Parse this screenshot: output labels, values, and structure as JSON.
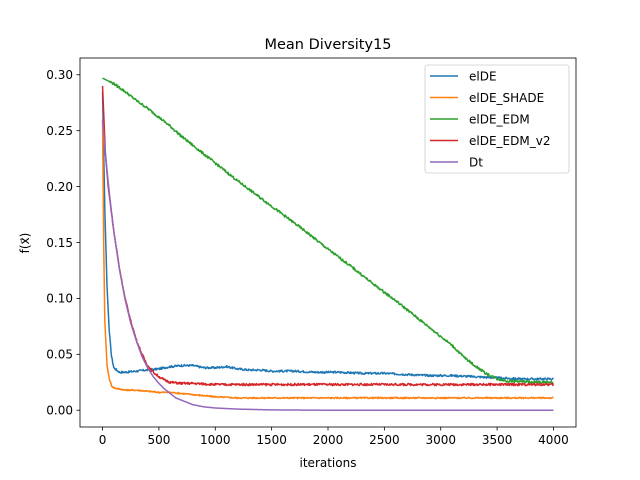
{
  "chart_data": {
    "type": "line",
    "title": "Mean Diversity15",
    "xlabel": "iterations",
    "ylabel": "f(x⃗)",
    "xlim": [
      -200,
      4200
    ],
    "ylim": [
      -0.015,
      0.315
    ],
    "xticks": [
      0,
      500,
      1000,
      1500,
      2000,
      2500,
      3000,
      3500,
      4000
    ],
    "yticks": [
      0.0,
      0.05,
      0.1,
      0.15,
      0.2,
      0.25,
      0.3
    ],
    "xtick_labels": [
      "0",
      "500",
      "1000",
      "1500",
      "2000",
      "2500",
      "3000",
      "3500",
      "4000"
    ],
    "ytick_labels": [
      "0.00",
      "0.05",
      "0.10",
      "0.15",
      "0.20",
      "0.25",
      "0.30"
    ],
    "grid": false,
    "legend_position": "top-right",
    "series": [
      {
        "name": "elDE",
        "color": "#1f77b4",
        "x": [
          0,
          20,
          40,
          60,
          80,
          100,
          150,
          200,
          300,
          400,
          500,
          600,
          700,
          800,
          900,
          1000,
          1100,
          1200,
          1300,
          1400,
          1500,
          1700,
          1900,
          2100,
          2300,
          2500,
          2700,
          2900,
          3100,
          3300,
          3500,
          3700,
          3900,
          4000
        ],
        "y": [
          0.285,
          0.18,
          0.11,
          0.07,
          0.048,
          0.038,
          0.034,
          0.034,
          0.035,
          0.036,
          0.037,
          0.039,
          0.04,
          0.04,
          0.038,
          0.038,
          0.039,
          0.037,
          0.036,
          0.036,
          0.035,
          0.035,
          0.034,
          0.034,
          0.033,
          0.033,
          0.032,
          0.031,
          0.031,
          0.03,
          0.029,
          0.028,
          0.028,
          0.028
        ]
      },
      {
        "name": "elDE_SHADE",
        "color": "#ff7f0e",
        "x": [
          0,
          10,
          20,
          40,
          60,
          80,
          100,
          150,
          200,
          300,
          400,
          500,
          600,
          700,
          800,
          900,
          1000,
          1200,
          1500,
          2000,
          2500,
          3000,
          3500,
          4000
        ],
        "y": [
          0.26,
          0.15,
          0.08,
          0.04,
          0.028,
          0.022,
          0.02,
          0.019,
          0.018,
          0.018,
          0.017,
          0.016,
          0.016,
          0.015,
          0.014,
          0.013,
          0.012,
          0.011,
          0.011,
          0.011,
          0.011,
          0.011,
          0.011,
          0.011
        ]
      },
      {
        "name": "elDE_EDM",
        "color": "#2ca02c",
        "x": [
          0,
          100,
          200,
          300,
          400,
          500,
          600,
          700,
          800,
          900,
          1000,
          1200,
          1400,
          1600,
          1800,
          2000,
          2200,
          2400,
          2600,
          2800,
          3000,
          3100,
          3200,
          3300,
          3400,
          3500,
          3600,
          3700,
          3800,
          3900,
          4000
        ],
        "y": [
          0.297,
          0.292,
          0.285,
          0.277,
          0.27,
          0.262,
          0.254,
          0.245,
          0.237,
          0.229,
          0.221,
          0.205,
          0.19,
          0.175,
          0.16,
          0.144,
          0.129,
          0.113,
          0.098,
          0.082,
          0.066,
          0.058,
          0.048,
          0.04,
          0.033,
          0.028,
          0.026,
          0.026,
          0.025,
          0.025,
          0.025
        ]
      },
      {
        "name": "elDE_EDM_v2",
        "color": "#d62728",
        "x": [
          0,
          25,
          50,
          100,
          150,
          200,
          250,
          300,
          350,
          400,
          450,
          500,
          550,
          600,
          700,
          800,
          1000,
          1500,
          2000,
          2500,
          3000,
          3500,
          4000
        ],
        "y": [
          0.29,
          0.23,
          0.2,
          0.16,
          0.127,
          0.1,
          0.08,
          0.063,
          0.05,
          0.04,
          0.034,
          0.03,
          0.027,
          0.025,
          0.024,
          0.024,
          0.023,
          0.023,
          0.023,
          0.023,
          0.023,
          0.023,
          0.023
        ]
      },
      {
        "name": "Dt",
        "color": "#9467bd",
        "x": [
          0,
          25,
          50,
          75,
          100,
          150,
          200,
          250,
          300,
          350,
          400,
          450,
          500,
          550,
          600,
          650,
          700,
          750,
          800,
          900,
          1000,
          1200,
          1500,
          2000,
          2500,
          3000,
          3500,
          4000
        ],
        "y": [
          0.26,
          0.23,
          0.204,
          0.181,
          0.16,
          0.126,
          0.099,
          0.078,
          0.062,
          0.048,
          0.038,
          0.03,
          0.024,
          0.019,
          0.015,
          0.011,
          0.009,
          0.007,
          0.005,
          0.003,
          0.002,
          0.001,
          0.0003,
          0.0,
          0.0,
          0.0,
          0.0,
          0.0
        ]
      }
    ]
  }
}
